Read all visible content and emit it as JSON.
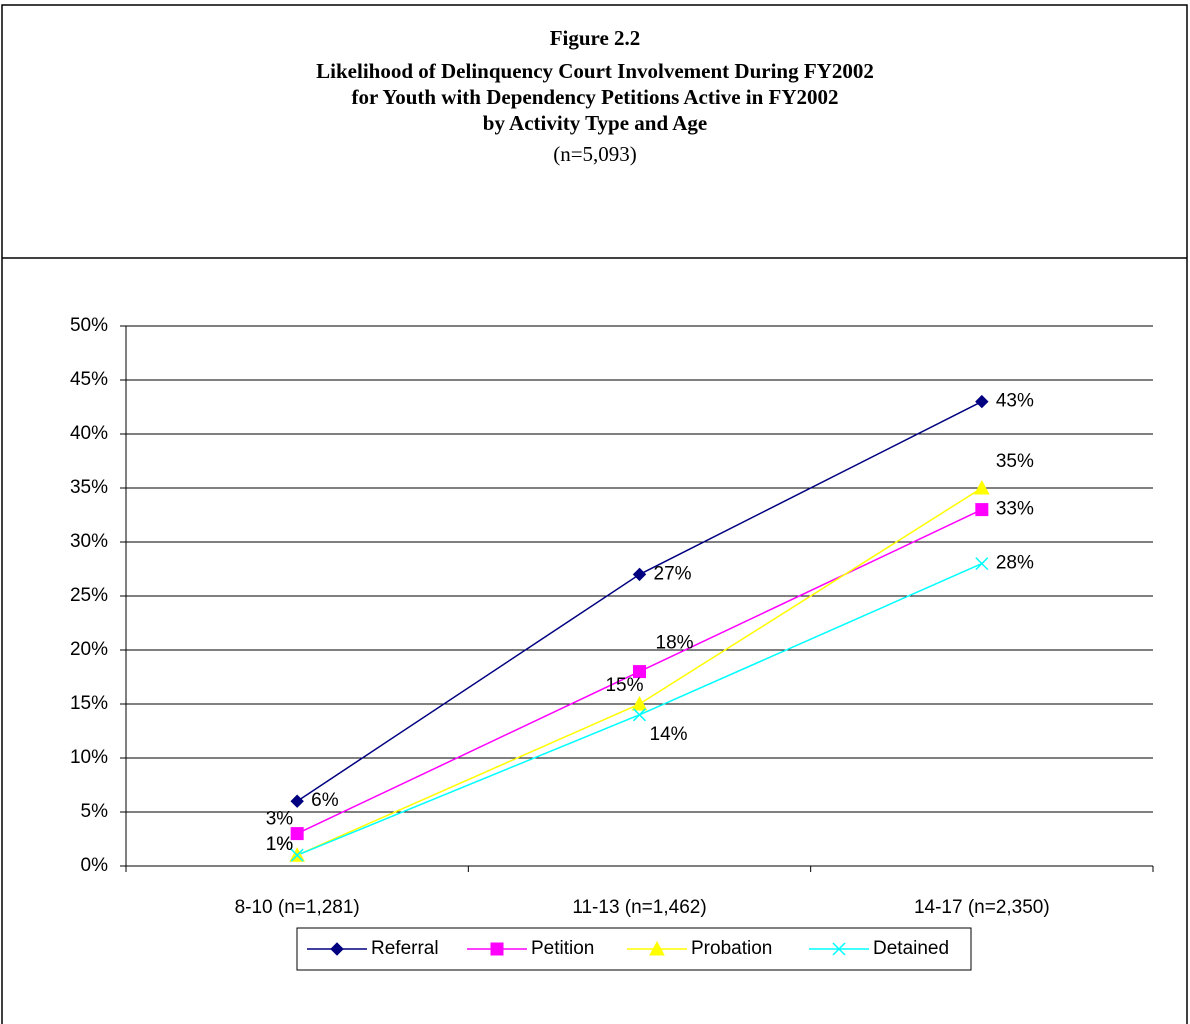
{
  "chart_data": {
    "type": "line",
    "title": "Figure 2.2",
    "subtitle": [
      "Likelihood of Delinquency Court Involvement During FY2002",
      "for Youth with Dependency Petitions Active in FY2002",
      "by Activity Type and Age"
    ],
    "note": "(n=5,093)",
    "categories": [
      "8-10  (n=1,281)",
      "11-13  (n=1,462)",
      "14-17  (n=2,350)"
    ],
    "series": [
      {
        "name": "Referral",
        "color": "#000080",
        "marker": "diamond",
        "values": [
          6,
          27,
          43
        ],
        "value_labels": [
          "6%",
          "27%",
          "43%"
        ]
      },
      {
        "name": "Petition",
        "color": "#ff00ff",
        "marker": "square",
        "values": [
          3,
          18,
          33
        ],
        "value_labels": [
          "3%",
          "18%",
          "33%"
        ]
      },
      {
        "name": "Probation",
        "color": "#ffff00",
        "marker": "triangle",
        "values": [
          1,
          15,
          35
        ],
        "value_labels": [
          "1%",
          "15%",
          "35%"
        ]
      },
      {
        "name": "Detained",
        "color": "#00ffff",
        "marker": "x",
        "values": [
          1,
          14,
          28
        ],
        "value_labels": [
          "1%",
          "14%",
          "28%"
        ]
      }
    ],
    "ylim": [
      0,
      50
    ],
    "yticks": [
      {
        "value": 0,
        "label": "0%"
      },
      {
        "value": 5,
        "label": "5%"
      },
      {
        "value": 10,
        "label": "10%"
      },
      {
        "value": 15,
        "label": "15%"
      },
      {
        "value": 20,
        "label": "20%"
      },
      {
        "value": 25,
        "label": "25%"
      },
      {
        "value": 30,
        "label": "30%"
      },
      {
        "value": 35,
        "label": "35%"
      },
      {
        "value": 40,
        "label": "40%"
      },
      {
        "value": 45,
        "label": "45%"
      },
      {
        "value": 50,
        "label": "50%"
      }
    ],
    "grid": true,
    "legend": "bottom"
  }
}
